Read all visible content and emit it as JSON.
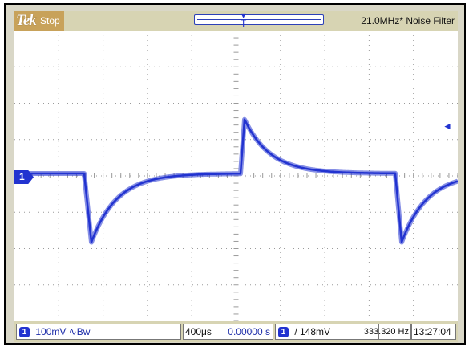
{
  "top": {
    "brand": "Tek",
    "acq_state": "Stop",
    "bandwidth_label": "21.0MHz* Noise Filter"
  },
  "markers": {
    "channel_marker": "1",
    "trigger_position_symbol": "T",
    "trigger_level_symbol": "◄"
  },
  "bottom": {
    "ch_badge": "1",
    "vertical_scale": "100mV ∿Bw",
    "timebase": "400μs",
    "position": "0.00000 s",
    "trig_badge": "1",
    "trigger_level": "/ 148mV",
    "trigger_freq": "333.320 Hz",
    "clock": "13:27:04"
  },
  "waveform": {
    "trace_color": "#2233d0",
    "grid_color": "#9a9a9a",
    "description_units": "square wave, AC-coupled, one period shown between falling edges",
    "baseline_mv": 0,
    "pulse_peak_mv": 150,
    "pulse_trough_mv": -190
  }
}
